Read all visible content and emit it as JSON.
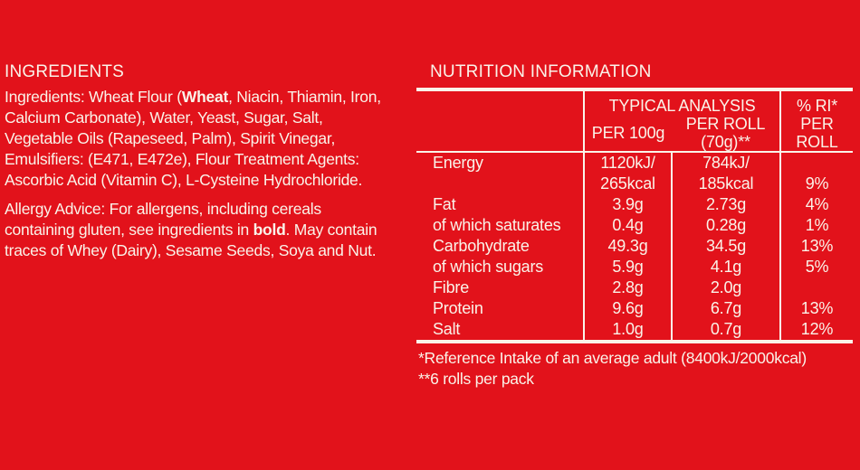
{
  "colors": {
    "background": "#E2121B",
    "text": "#FAF3E9"
  },
  "ingredients": {
    "title": "INGREDIENTS",
    "lines": [
      [
        {
          "text": "Ingredients: Wheat Flour ("
        },
        {
          "text": "Wheat",
          "bold": true
        },
        {
          "text": ", Niacin, Thiamin, Iron,"
        }
      ],
      [
        {
          "text": "Calcium Carbonate), Water, Yeast, Sugar, Salt,"
        }
      ],
      [
        {
          "text": "Vegetable Oils (Rapeseed, Palm), Spirit Vinegar,"
        }
      ],
      [
        {
          "text": "Emulsifiers: (E471, E472e), Flour Treatment Agents:"
        }
      ],
      [
        {
          "text": "Ascorbic Acid (Vitamin C), L-Cysteine Hydrochloride."
        }
      ]
    ],
    "allergy_lines": [
      [
        {
          "text": "Allergy Advice: For allergens, including cereals"
        }
      ],
      [
        {
          "text": "containing gluten, see ingredients in "
        },
        {
          "text": "bold",
          "bold": true
        },
        {
          "text": ". May contain"
        }
      ],
      [
        {
          "text": "traces of Whey (Dairy), Sesame Seeds, Soya and Nut."
        }
      ]
    ]
  },
  "nutrition": {
    "title": "NUTRITION INFORMATION",
    "header": {
      "typical_analysis": "TYPICAL ANALYSIS",
      "per_100g": "PER 100g",
      "per_roll": "PER ROLL (70g)**",
      "ri_per_roll": "% RI*\nPER ROLL"
    },
    "rows": [
      {
        "label": "Energy",
        "per100": "1120kJ/\n265kcal",
        "perRoll": "784kJ/\n185kcal",
        "ri": "9%"
      },
      {
        "label": "Fat",
        "per100": "3.9g",
        "perRoll": "2.73g",
        "ri": "4%"
      },
      {
        "label": "of which saturates",
        "per100": "0.4g",
        "perRoll": "0.28g",
        "ri": "1%"
      },
      {
        "label": "Carbohydrate",
        "per100": "49.3g",
        "perRoll": "34.5g",
        "ri": "13%"
      },
      {
        "label": "of which sugars",
        "per100": "5.9g",
        "perRoll": "4.1g",
        "ri": "5%"
      },
      {
        "label": "Fibre",
        "per100": "2.8g",
        "perRoll": "2.0g",
        "ri": ""
      },
      {
        "label": "Protein",
        "per100": "9.6g",
        "perRoll": "6.7g",
        "ri": "13%"
      },
      {
        "label": "Salt",
        "per100": "1.0g",
        "perRoll": "0.7g",
        "ri": "12%"
      }
    ],
    "footnotes": [
      "*Reference Intake of an average adult (8400kJ/2000kcal)",
      "**6 rolls per pack"
    ]
  }
}
